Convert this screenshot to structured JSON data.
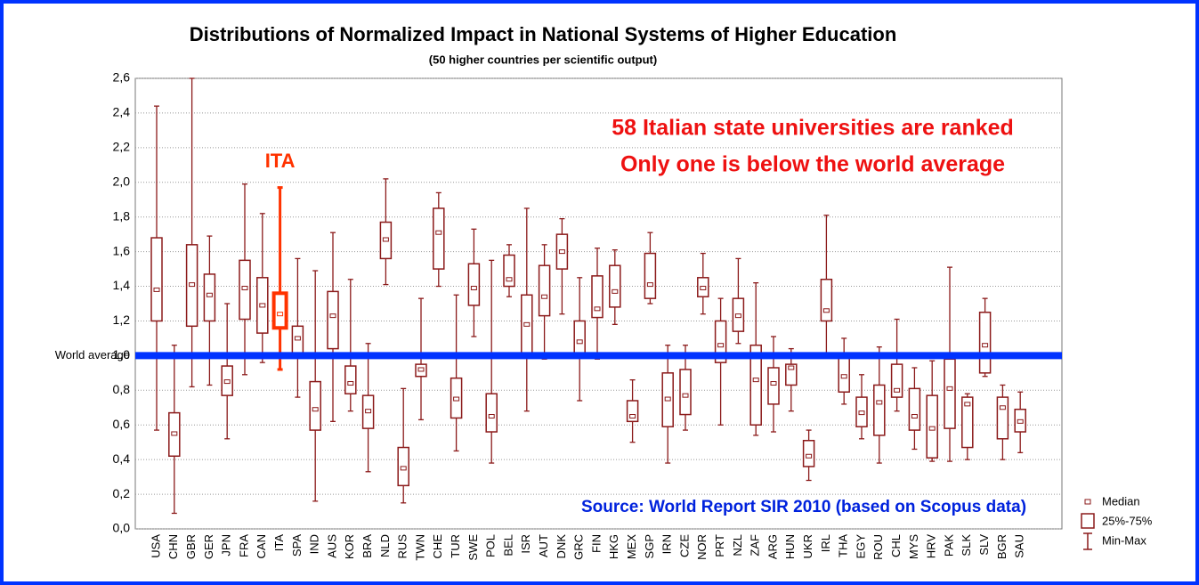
{
  "chart_data": {
    "type": "box",
    "title": "Distributions of Normalized Impact in National Systems of Higher Education",
    "subtitle": "(50 higher countries per scientific output)",
    "categories": [
      "USA",
      "CHN",
      "GBR",
      "GER",
      "JPN",
      "FRA",
      "CAN",
      "ITA",
      "SPA",
      "IND",
      "AUS",
      "KOR",
      "BRA",
      "NLD",
      "RUS",
      "TWN",
      "CHE",
      "TUR",
      "SWE",
      "POL",
      "BEL",
      "ISR",
      "AUT",
      "DNK",
      "GRC",
      "FIN",
      "HKG",
      "MEX",
      "SGP",
      "IRN",
      "CZE",
      "NOR",
      "PRT",
      "NZL",
      "ZAF",
      "ARG",
      "HUN",
      "UKR",
      "IRL",
      "THA",
      "EGY",
      "ROU",
      "CHL",
      "MYS",
      "HRV",
      "PAK",
      "SLK",
      "SLV",
      "BGR",
      "SAU"
    ],
    "min": [
      0.57,
      0.09,
      0.82,
      0.83,
      0.52,
      0.89,
      0.96,
      0.92,
      0.76,
      0.16,
      0.62,
      0.68,
      0.33,
      1.41,
      0.15,
      0.63,
      1.4,
      0.45,
      1.11,
      0.38,
      1.34,
      0.68,
      0.98,
      1.24,
      0.74,
      0.98,
      1.18,
      0.5,
      1.3,
      0.38,
      0.57,
      1.24,
      0.6,
      1.07,
      0.54,
      0.56,
      0.68,
      0.28,
      1.0,
      0.72,
      0.52,
      0.38,
      0.68,
      0.46,
      0.39,
      0.39,
      0.4,
      0.88,
      0.4,
      0.44
    ],
    "q1": [
      1.2,
      0.42,
      1.17,
      1.2,
      0.77,
      1.21,
      1.13,
      1.16,
      1.0,
      0.57,
      1.04,
      0.78,
      0.58,
      1.56,
      0.25,
      0.88,
      1.5,
      0.64,
      1.29,
      0.56,
      1.4,
      1.01,
      1.23,
      1.5,
      1.0,
      1.22,
      1.28,
      0.62,
      1.33,
      0.59,
      0.66,
      1.34,
      0.96,
      1.14,
      0.6,
      0.72,
      0.83,
      0.36,
      1.2,
      0.79,
      0.59,
      0.54,
      0.76,
      0.57,
      0.41,
      0.58,
      0.47,
      0.9,
      0.52,
      0.56
    ],
    "median": [
      1.38,
      0.55,
      1.41,
      1.35,
      0.85,
      1.39,
      1.29,
      1.24,
      1.1,
      0.69,
      1.23,
      0.84,
      0.68,
      1.67,
      0.35,
      0.92,
      1.71,
      0.75,
      1.39,
      0.65,
      1.44,
      1.18,
      1.34,
      1.6,
      1.08,
      1.27,
      1.37,
      0.65,
      1.41,
      0.75,
      0.77,
      1.39,
      1.06,
      1.23,
      0.86,
      0.84,
      0.93,
      0.42,
      1.26,
      0.88,
      0.67,
      0.73,
      0.8,
      0.65,
      0.58,
      0.81,
      0.72,
      1.06,
      0.7,
      0.62
    ],
    "q3": [
      1.68,
      0.67,
      1.64,
      1.47,
      0.94,
      1.55,
      1.45,
      1.36,
      1.17,
      0.85,
      1.37,
      0.94,
      0.77,
      1.77,
      0.47,
      0.95,
      1.85,
      0.87,
      1.53,
      0.78,
      1.58,
      1.35,
      1.52,
      1.7,
      1.2,
      1.46,
      1.52,
      0.74,
      1.59,
      0.9,
      0.92,
      1.45,
      1.2,
      1.33,
      1.06,
      0.93,
      0.95,
      0.51,
      1.44,
      1.0,
      0.76,
      0.83,
      0.95,
      0.81,
      0.77,
      0.98,
      0.76,
      1.25,
      0.76,
      0.69
    ],
    "max": [
      2.44,
      1.06,
      2.6,
      1.69,
      1.3,
      1.99,
      1.82,
      1.97,
      1.56,
      1.49,
      1.71,
      1.44,
      1.07,
      2.02,
      0.81,
      1.33,
      1.94,
      1.35,
      1.73,
      1.55,
      1.64,
      1.85,
      1.64,
      1.79,
      1.45,
      1.62,
      1.61,
      0.86,
      1.71,
      1.06,
      1.06,
      1.59,
      1.33,
      1.56,
      1.42,
      1.11,
      1.04,
      0.57,
      1.81,
      1.1,
      0.89,
      1.05,
      1.21,
      0.93,
      0.97,
      1.51,
      0.78,
      1.33,
      0.83,
      0.79
    ],
    "color": "#8b1a1a",
    "highlight": {
      "category": "ITA",
      "color": "#ff3300"
    },
    "ylim": [
      0,
      2.6
    ],
    "yticks": [
      {
        "value": 0,
        "label": "0,0"
      },
      {
        "value": 0.2,
        "label": "0,2"
      },
      {
        "value": 0.4,
        "label": "0,4"
      },
      {
        "value": 0.6,
        "label": "0,6"
      },
      {
        "value": 0.8,
        "label": "0,8"
      },
      {
        "value": 1,
        "label": "1,0"
      },
      {
        "value": 1.2,
        "label": "1,2"
      },
      {
        "value": 1.4,
        "label": "1,4"
      },
      {
        "value": 1.6,
        "label": "1,6"
      },
      {
        "value": 1.8,
        "label": "1,8"
      },
      {
        "value": 2,
        "label": "2,0"
      },
      {
        "value": 2.2,
        "label": "2,2"
      },
      {
        "value": 2.4,
        "label": "2,4"
      },
      {
        "value": 2.6,
        "label": "2,6"
      }
    ],
    "grid": true,
    "reference_line": {
      "label": "World average",
      "value": 1,
      "color": "#0033ff"
    },
    "annotations": [
      "ITA",
      "58 Italian state universities are ranked",
      "Only one is below the world average",
      "Source: World Report SIR 2010 (based on Scopus data)"
    ],
    "legend": [
      "Median",
      "25%-75%",
      "Min-Max"
    ]
  }
}
